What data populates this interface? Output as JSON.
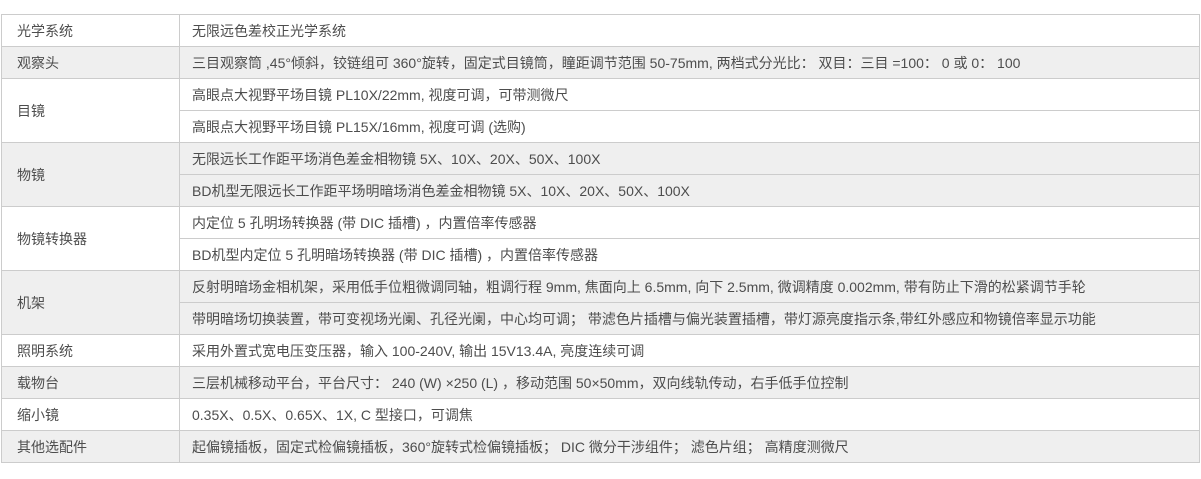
{
  "table": {
    "colors": {
      "background": "#ffffff",
      "stripe_row": "#efefef",
      "border": "#cccccc",
      "text": "#4d4d4d"
    },
    "groups": [
      {
        "label": "光学系统",
        "rows": [
          "无限远色差校正光学系统"
        ]
      },
      {
        "label": "观察头",
        "rows": [
          "三目观察筒 ,45°倾斜，铰链组可 360°旋转，固定式目镜筒，瞳距调节范围 50-75mm, 两档式分光比： 双目：三目 =100： 0 或 0： 100"
        ]
      },
      {
        "label": "目镜",
        "rows": [
          "高眼点大视野平场目镜 PL10X/22mm, 视度可调，可带测微尺",
          "高眼点大视野平场目镜 PL15X/16mm, 视度可调 (选购)"
        ]
      },
      {
        "label": "物镜",
        "rows": [
          "无限远长工作距平场消色差金相物镜 5X、10X、20X、50X、100X",
          "BD机型无限远长工作距平场明暗场消色差金相物镜 5X、10X、20X、50X、100X"
        ]
      },
      {
        "label": "物镜转换器",
        "rows": [
          "内定位 5 孔明场转换器 (带 DIC 插槽) ，内置倍率传感器",
          "BD机型内定位 5 孔明暗场转换器 (带 DIC 插槽) ，内置倍率传感器"
        ]
      },
      {
        "label": "机架",
        "rows": [
          "反射明暗场金相机架，采用低手位粗微调同轴，粗调行程 9mm, 焦面向上 6.5mm, 向下 2.5mm, 微调精度 0.002mm, 带有防止下滑的松紧调节手轮",
          "带明暗场切换装置，带可变视场光阑、孔径光阑，中心均可调； 带滤色片插槽与偏光装置插槽，带灯源亮度指示条,带红外感应和物镜倍率显示功能"
        ]
      },
      {
        "label": "照明系统",
        "rows": [
          "采用外置式宽电压变压器，输入 100-240V, 输出 15V13.4A, 亮度连续可调"
        ]
      },
      {
        "label": "载物台",
        "rows": [
          "三层机械移动平台，平台尺寸： 240 (W) ×250 (L) ，移动范围 50×50mm，双向线轨传动，右手低手位控制"
        ]
      },
      {
        "label": "缩小镜",
        "rows": [
          "0.35X、0.5X、0.65X、1X, C 型接口，可调焦"
        ]
      },
      {
        "label": "其他选配件",
        "rows": [
          "起偏镜插板，固定式检偏镜插板，360°旋转式检偏镜插板； DIC 微分干涉组件； 滤色片组； 高精度测微尺"
        ]
      }
    ]
  }
}
